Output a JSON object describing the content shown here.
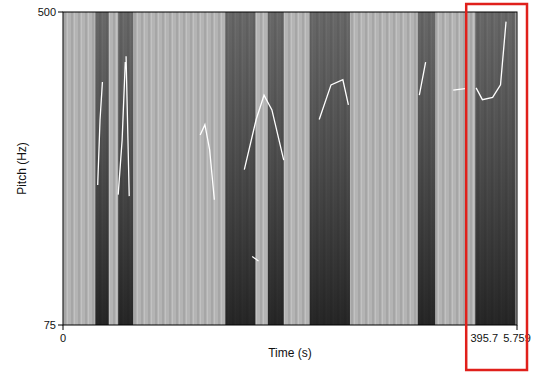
{
  "chart_data": {
    "type": "line",
    "x_label": "Time (s)",
    "y_label": "Pitch (Hz)",
    "xlim": [
      0,
      5.759
    ],
    "ylim": [
      75,
      500
    ],
    "xticks": [
      0,
      5.759
    ],
    "yticks": [
      75,
      500
    ],
    "grid": false,
    "x": [
      0.44,
      0.47,
      0.5,
      null,
      0.7,
      0.75,
      0.79,
      null,
      0.8,
      0.84,
      null,
      1.74,
      1.8,
      1.86,
      1.92,
      null,
      2.3,
      2.45,
      2.55,
      2.65,
      2.8,
      null,
      2.4,
      2.48,
      null,
      3.25,
      3.4,
      3.55,
      3.62,
      null,
      4.52,
      4.6,
      null,
      4.95,
      5.1,
      null,
      5.24,
      5.32,
      5.45,
      5.55,
      5.62
    ],
    "series": [
      {
        "color": "#ffffff",
        "line_style": "solid",
        "values": [
          265,
          354,
          405,
          null,
          252,
          326,
          432,
          null,
          440,
          250,
          null,
          333,
          347,
          313,
          245,
          null,
          286,
          354,
          387,
          367,
          299,
          null,
          168,
          162,
          null,
          354,
          401,
          408,
          374,
          null,
          387,
          432,
          null,
          394,
          396,
          null,
          397,
          381,
          384,
          401,
          487
        ]
      }
    ],
    "dark_bands": [
      {
        "start": 0.41,
        "end": 0.58
      },
      {
        "start": 0.7,
        "end": 0.89
      },
      {
        "start": 2.06,
        "end": 2.44
      },
      {
        "start": 2.6,
        "end": 2.8
      },
      {
        "start": 3.13,
        "end": 3.64
      },
      {
        "start": 4.5,
        "end": 4.72
      },
      {
        "start": 5.23,
        "end": 5.74
      }
    ],
    "annotation": {
      "text": "395.7",
      "x_start": 5.14,
      "x_end": 5.759,
      "color": "#e0201b"
    }
  }
}
